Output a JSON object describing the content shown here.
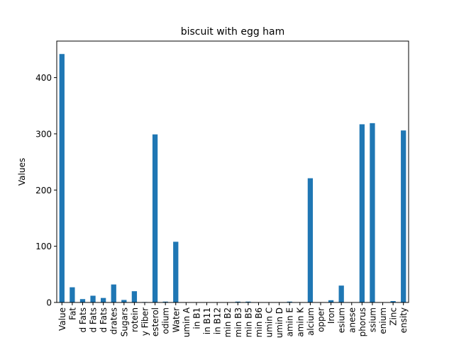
{
  "chart_data": {
    "type": "bar",
    "title": "biscuit with egg ham",
    "xlabel": "",
    "ylabel": "Values",
    "ylim": [
      0,
      465
    ],
    "yticks": [
      0,
      100,
      200,
      300,
      400
    ],
    "grid": false,
    "legend": "none",
    "bar_color": "#1f77b4",
    "categories": [
      "Value",
      "Fat",
      "d Fats",
      "d Fats",
      "d Fats",
      "drates",
      "Sugars",
      "rotein",
      "y Fiber",
      "esterol",
      "odium",
      "Water",
      "umin A",
      "in B1",
      "in B11",
      "in B12",
      "min B2",
      "min B3",
      "min B5",
      "min B6",
      "umin C",
      "umin D",
      "amin E",
      "amin K",
      "alcium",
      "opper",
      "Iron",
      "esium",
      "anese",
      "phorus",
      "ssium",
      "enium",
      "Zinc",
      "ensity"
    ],
    "values": [
      442,
      27,
      6,
      12,
      8,
      32,
      4.5,
      20,
      0.8,
      299,
      1.5,
      108,
      0.3,
      0.3,
      0.3,
      0.3,
      0.5,
      1.5,
      1.5,
      0.3,
      0,
      0.5,
      1.5,
      0.3,
      221,
      0.2,
      4,
      30,
      0.1,
      317,
      319,
      0.1,
      2.5,
      306
    ]
  }
}
